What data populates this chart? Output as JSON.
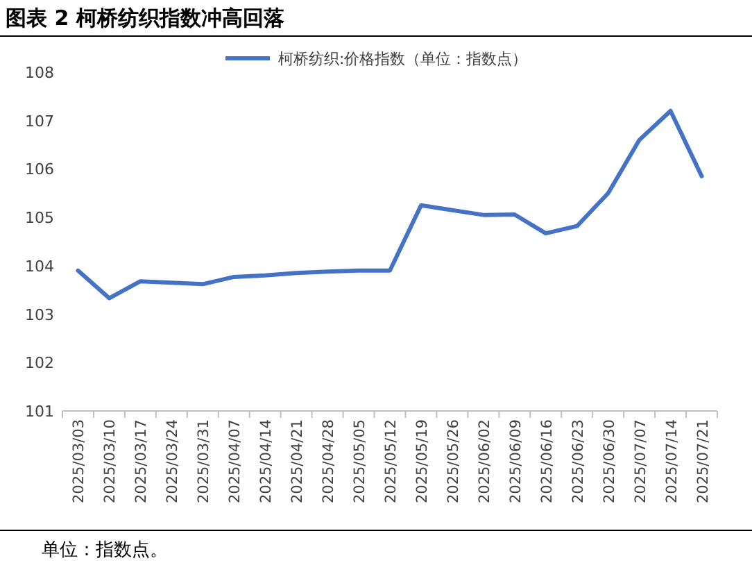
{
  "chart_data": {
    "type": "line",
    "title": "图表 2 柯桥纺织指数冲高回落",
    "categories": [
      "2025/03/03",
      "2025/03/10",
      "2025/03/17",
      "2025/03/24",
      "2025/03/31",
      "2025/04/07",
      "2025/04/14",
      "2025/04/21",
      "2025/04/28",
      "2025/05/05",
      "2025/05/12",
      "2025/05/19",
      "2025/05/26",
      "2025/06/02",
      "2025/06/09",
      "2025/06/16",
      "2025/06/23",
      "2025/06/30",
      "2025/07/07",
      "2025/07/14",
      "2025/07/21"
    ],
    "series": [
      {
        "name": "柯桥纺织:价格指数（单位：指数点）",
        "color": "#4472c4",
        "values": [
          103.9,
          103.33,
          103.68,
          103.65,
          103.62,
          103.77,
          103.8,
          103.85,
          103.88,
          103.9,
          103.9,
          105.25,
          105.15,
          105.05,
          105.06,
          104.67,
          104.82,
          105.5,
          106.6,
          107.2,
          105.85
        ]
      }
    ],
    "ylim": [
      101,
      108
    ],
    "yticks": [
      101,
      102,
      103,
      104,
      105,
      106,
      107,
      108
    ],
    "legend": "top",
    "grid": false,
    "marker": "none",
    "line_style": "solid",
    "annotations": [
      "单位：指数点。"
    ]
  }
}
